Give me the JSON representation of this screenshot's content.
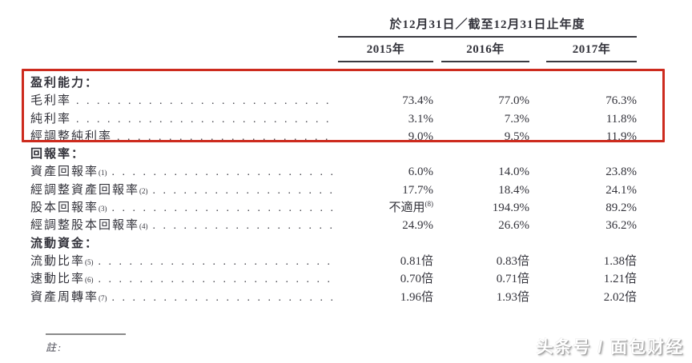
{
  "colors": {
    "highlight_box": "#cd2b1e"
  },
  "header": {
    "period": "於12月31日／截至12月31日止年度",
    "years": [
      "2015年",
      "2016年",
      "2017年"
    ]
  },
  "rows": [
    {
      "type": "section",
      "label": "盈利能力："
    },
    {
      "type": "data",
      "label": "毛利率",
      "v": [
        "73.4%",
        "77.0%",
        "76.3%"
      ]
    },
    {
      "type": "data",
      "label": "純利率",
      "v": [
        "3.1%",
        "7.3%",
        "11.8%"
      ]
    },
    {
      "type": "data",
      "label": "經調整純利率",
      "v": [
        "9.0%",
        "9.5%",
        "11.9%"
      ]
    },
    {
      "type": "section",
      "label": "回報率："
    },
    {
      "type": "data",
      "label": "資產回報率",
      "sup": "(1)",
      "v": [
        "6.0%",
        "14.0%",
        "23.8%"
      ]
    },
    {
      "type": "data",
      "label": "經調整資產回報率",
      "sup": "(2)",
      "v": [
        "17.7%",
        "18.4%",
        "24.1%"
      ]
    },
    {
      "type": "data",
      "label": "股本回報率",
      "sup": "(3)",
      "v": [
        "不適用",
        "194.9%",
        "89.2%"
      ],
      "vsup0": "(8)"
    },
    {
      "type": "data",
      "label": "經調整股本回報率",
      "sup": "(4)",
      "v": [
        "24.9%",
        "26.6%",
        "36.2%"
      ]
    },
    {
      "type": "section",
      "label": "流動資金："
    },
    {
      "type": "data",
      "label": "流動比率",
      "sup": "(5)",
      "v": [
        "0.81倍",
        "0.83倍",
        "1.38倍"
      ]
    },
    {
      "type": "data",
      "label": "速動比率",
      "sup": "(6)",
      "v": [
        "0.70倍",
        "0.71倍",
        "1.21倍"
      ]
    },
    {
      "type": "data",
      "label": "資產周轉率",
      "sup": "(7)",
      "v": [
        "1.96倍",
        "1.93倍",
        "2.02倍"
      ]
    }
  ],
  "footer": {
    "note": "註:"
  },
  "watermark": {
    "text": "头条号 / 面包财经"
  }
}
